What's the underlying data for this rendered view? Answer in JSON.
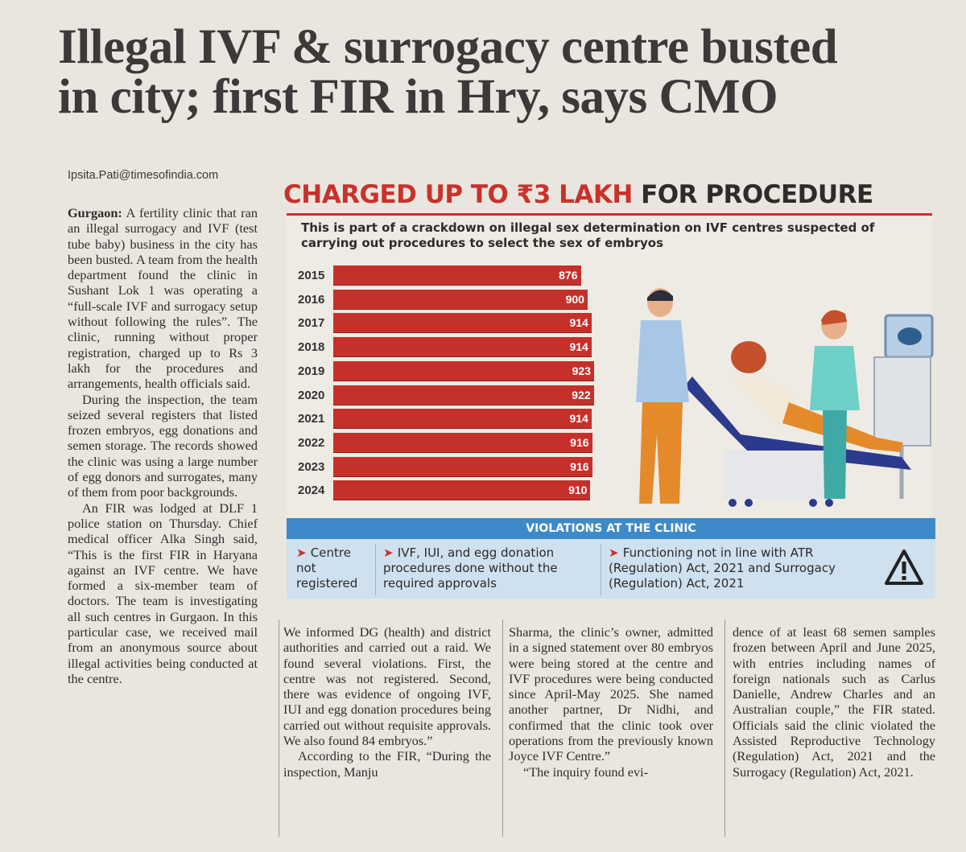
{
  "headline": {
    "line1": "Illegal IVF & surrogacy centre busted",
    "line2": "in city; first FIR in Hry, says CMO"
  },
  "byline": "Ipsita.Pati@timesofindia.com",
  "graphic": {
    "title_red": "CHARGED UP TO ₹3 LAKH",
    "title_dark": " FOR PROCEDURE",
    "subtitle": "This is part of a crackdown on illegal sex determination on IVF centres suspected of carrying out procedures to select the sex of embryos",
    "violations_title": "VIOLATIONS AT THE CLINIC",
    "violations": [
      "Centre not registered",
      "IVF, IUI, and egg donation procedures done without the required approvals",
      "Functioning not in line with ATR (Regulation) Act, 2021 and Surrogacy (Regulation) Act, 2021"
    ],
    "icons": [
      "warning-icon",
      "arrow-icon"
    ],
    "colors": {
      "accent_red": "#c8322b",
      "banner_blue": "#3e8ac9",
      "box_blue": "#cfe0ef"
    }
  },
  "chart_data": {
    "type": "bar",
    "orientation": "horizontal",
    "categories": [
      "2015",
      "2016",
      "2017",
      "2018",
      "2019",
      "2020",
      "2021",
      "2022",
      "2023",
      "2024"
    ],
    "values": [
      876,
      900,
      914,
      914,
      923,
      922,
      914,
      916,
      916,
      910
    ],
    "data_labels": [
      "876",
      "900",
      "914",
      "914",
      "923",
      "922",
      "914",
      "916",
      "916",
      "910"
    ],
    "color": "#c6302b"
  },
  "article": {
    "col1": {
      "dateline": "Gurgaon:",
      "p1": " A fertility clinic that ran an illegal surrogacy and IVF (test tube baby) business in the city has been busted. A team from the health department found the clinic in Sushant Lok 1 was operating a “full-scale IVF and surrogacy setup without following the rules”. The clinic, running without proper registration, charged up to Rs 3 lakh for the procedures and arrangements, health officials said.",
      "p2": "During the inspection, the team seized several registers that listed frozen embryos, egg donations and semen storage. The records showed the clinic was using a large number of egg donors and surrogates, many of them from poor backgrounds.",
      "p3": "An FIR was lodged at DLF 1 police station on Thursday. Chief medical officer Alka Singh said, “This is the first FIR in Haryana against an IVF centre. We have formed a six-member team of doctors. The team is investigating all such centres in Gurgaon. In this particular case, we received mail from an anonymous source about illegal activities being conducted at the centre."
    },
    "col2": {
      "p1": "We informed DG (health) and district authorities and carried out a raid. We found several violations. First, the centre was not registered. Second, there was evidence of ongoing IVF, IUI and egg donation procedures being carried out without requisite approvals. We also found 84 embryos.”",
      "p2": "According to the FIR, “During the inspection, Manju"
    },
    "col3": {
      "p1": "Sharma, the clinic’s owner, admitted in a signed statement over 80 embryos were being stored at the centre and IVF procedures were being conducted since April-May 2025. She named another partner, Dr Nidhi, and confirmed that the clinic took over operations from the previously known Joyce IVF Centre.”",
      "p2": "“The inquiry found evi-"
    },
    "col4": {
      "p1": "dence of at least 68 semen samples frozen between April and June 2025, with entries including names of foreign nationals such as Carlus Danielle, Andrew Charles and an Australian couple,” the FIR stated. Officials said the clinic violated the Assisted Reproductive Technology (Regulation) Act, 2021 and the Surrogacy (Regulation) Act, 2021."
    }
  }
}
